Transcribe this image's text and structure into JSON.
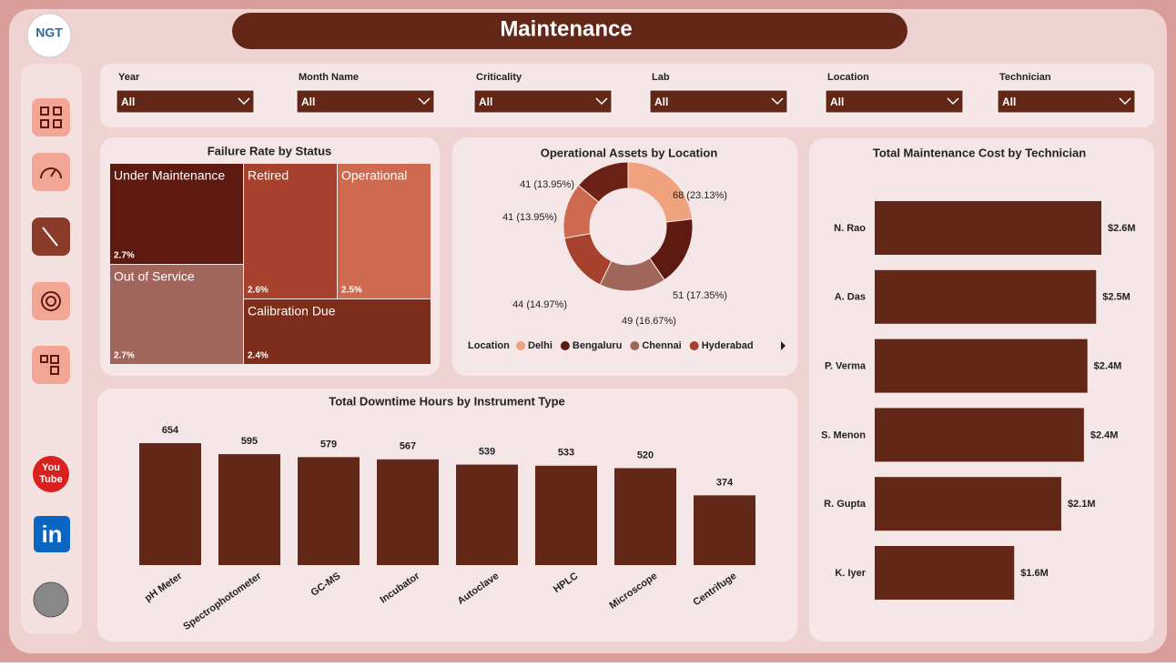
{
  "header": {
    "title": "Maintenance",
    "logo": "NGT"
  },
  "sidebar": {
    "youtube": [
      "You",
      "Tube"
    ],
    "linkedin": "in"
  },
  "filters": [
    {
      "label": "Year",
      "value": "All"
    },
    {
      "label": "Month Name",
      "value": "All"
    },
    {
      "label": "Criticality",
      "value": "All"
    },
    {
      "label": "Lab",
      "value": "All"
    },
    {
      "label": "Location",
      "value": "All"
    },
    {
      "label": "Technician",
      "value": "All"
    }
  ],
  "chart_data": [
    {
      "type": "treemap",
      "title": "Failure Rate by Status",
      "categories": [
        "Under Maintenance",
        "Retired",
        "Operational",
        "Out of Service",
        "Calibration Due"
      ],
      "values": [
        2.7,
        2.6,
        2.5,
        2.7,
        2.4
      ],
      "value_labels": [
        "2.7%",
        "2.6%",
        "2.5%",
        "2.7%",
        "2.4%"
      ],
      "colors": [
        "#5e1a10",
        "#a5412c",
        "#cd6a50",
        "#a0665c",
        "#7e2d1a"
      ]
    },
    {
      "type": "donut",
      "title": "Operational Assets by Location",
      "legend_title": "Location",
      "categories": [
        "Delhi",
        "Bengaluru",
        "Chennai",
        "Hyderabad",
        null,
        null
      ],
      "values": [
        68,
        51,
        49,
        44,
        41,
        41
      ],
      "value_labels": [
        "68 (23.13%)",
        "51 (17.35%)",
        "49 (16.67%)",
        "44 (14.97%)",
        "41 (13.95%)",
        "41 (13.95%)"
      ],
      "colors": [
        "#f0a27e",
        "#5e1a10",
        "#a0665c",
        "#a5412c",
        "#cd6a50",
        "#6b2115"
      ]
    },
    {
      "type": "hbar",
      "title": "Total Maintenance Cost by Technician",
      "categories": [
        "N. Rao",
        "A. Das",
        "P. Verma",
        "S. Menon",
        "R. Gupta",
        "K. Iyer"
      ],
      "values": [
        2600000,
        2540000,
        2440000,
        2400000,
        2140000,
        1600000
      ],
      "value_labels": [
        "$2.6M",
        "$2.5M",
        "$2.4M",
        "$2.4M",
        "$2.1M",
        "$1.6M"
      ],
      "color": "#632718"
    },
    {
      "type": "bar",
      "title": "Total Downtime Hours by Instrument Type",
      "categories": [
        "pH Meter",
        "Spectrophotometer",
        "GC-MS",
        "Incubator",
        "Autoclave",
        "HPLC",
        "Microscope",
        "Centrifuge"
      ],
      "values": [
        654,
        595,
        579,
        567,
        539,
        533,
        520,
        374
      ],
      "color": "#632718"
    }
  ]
}
